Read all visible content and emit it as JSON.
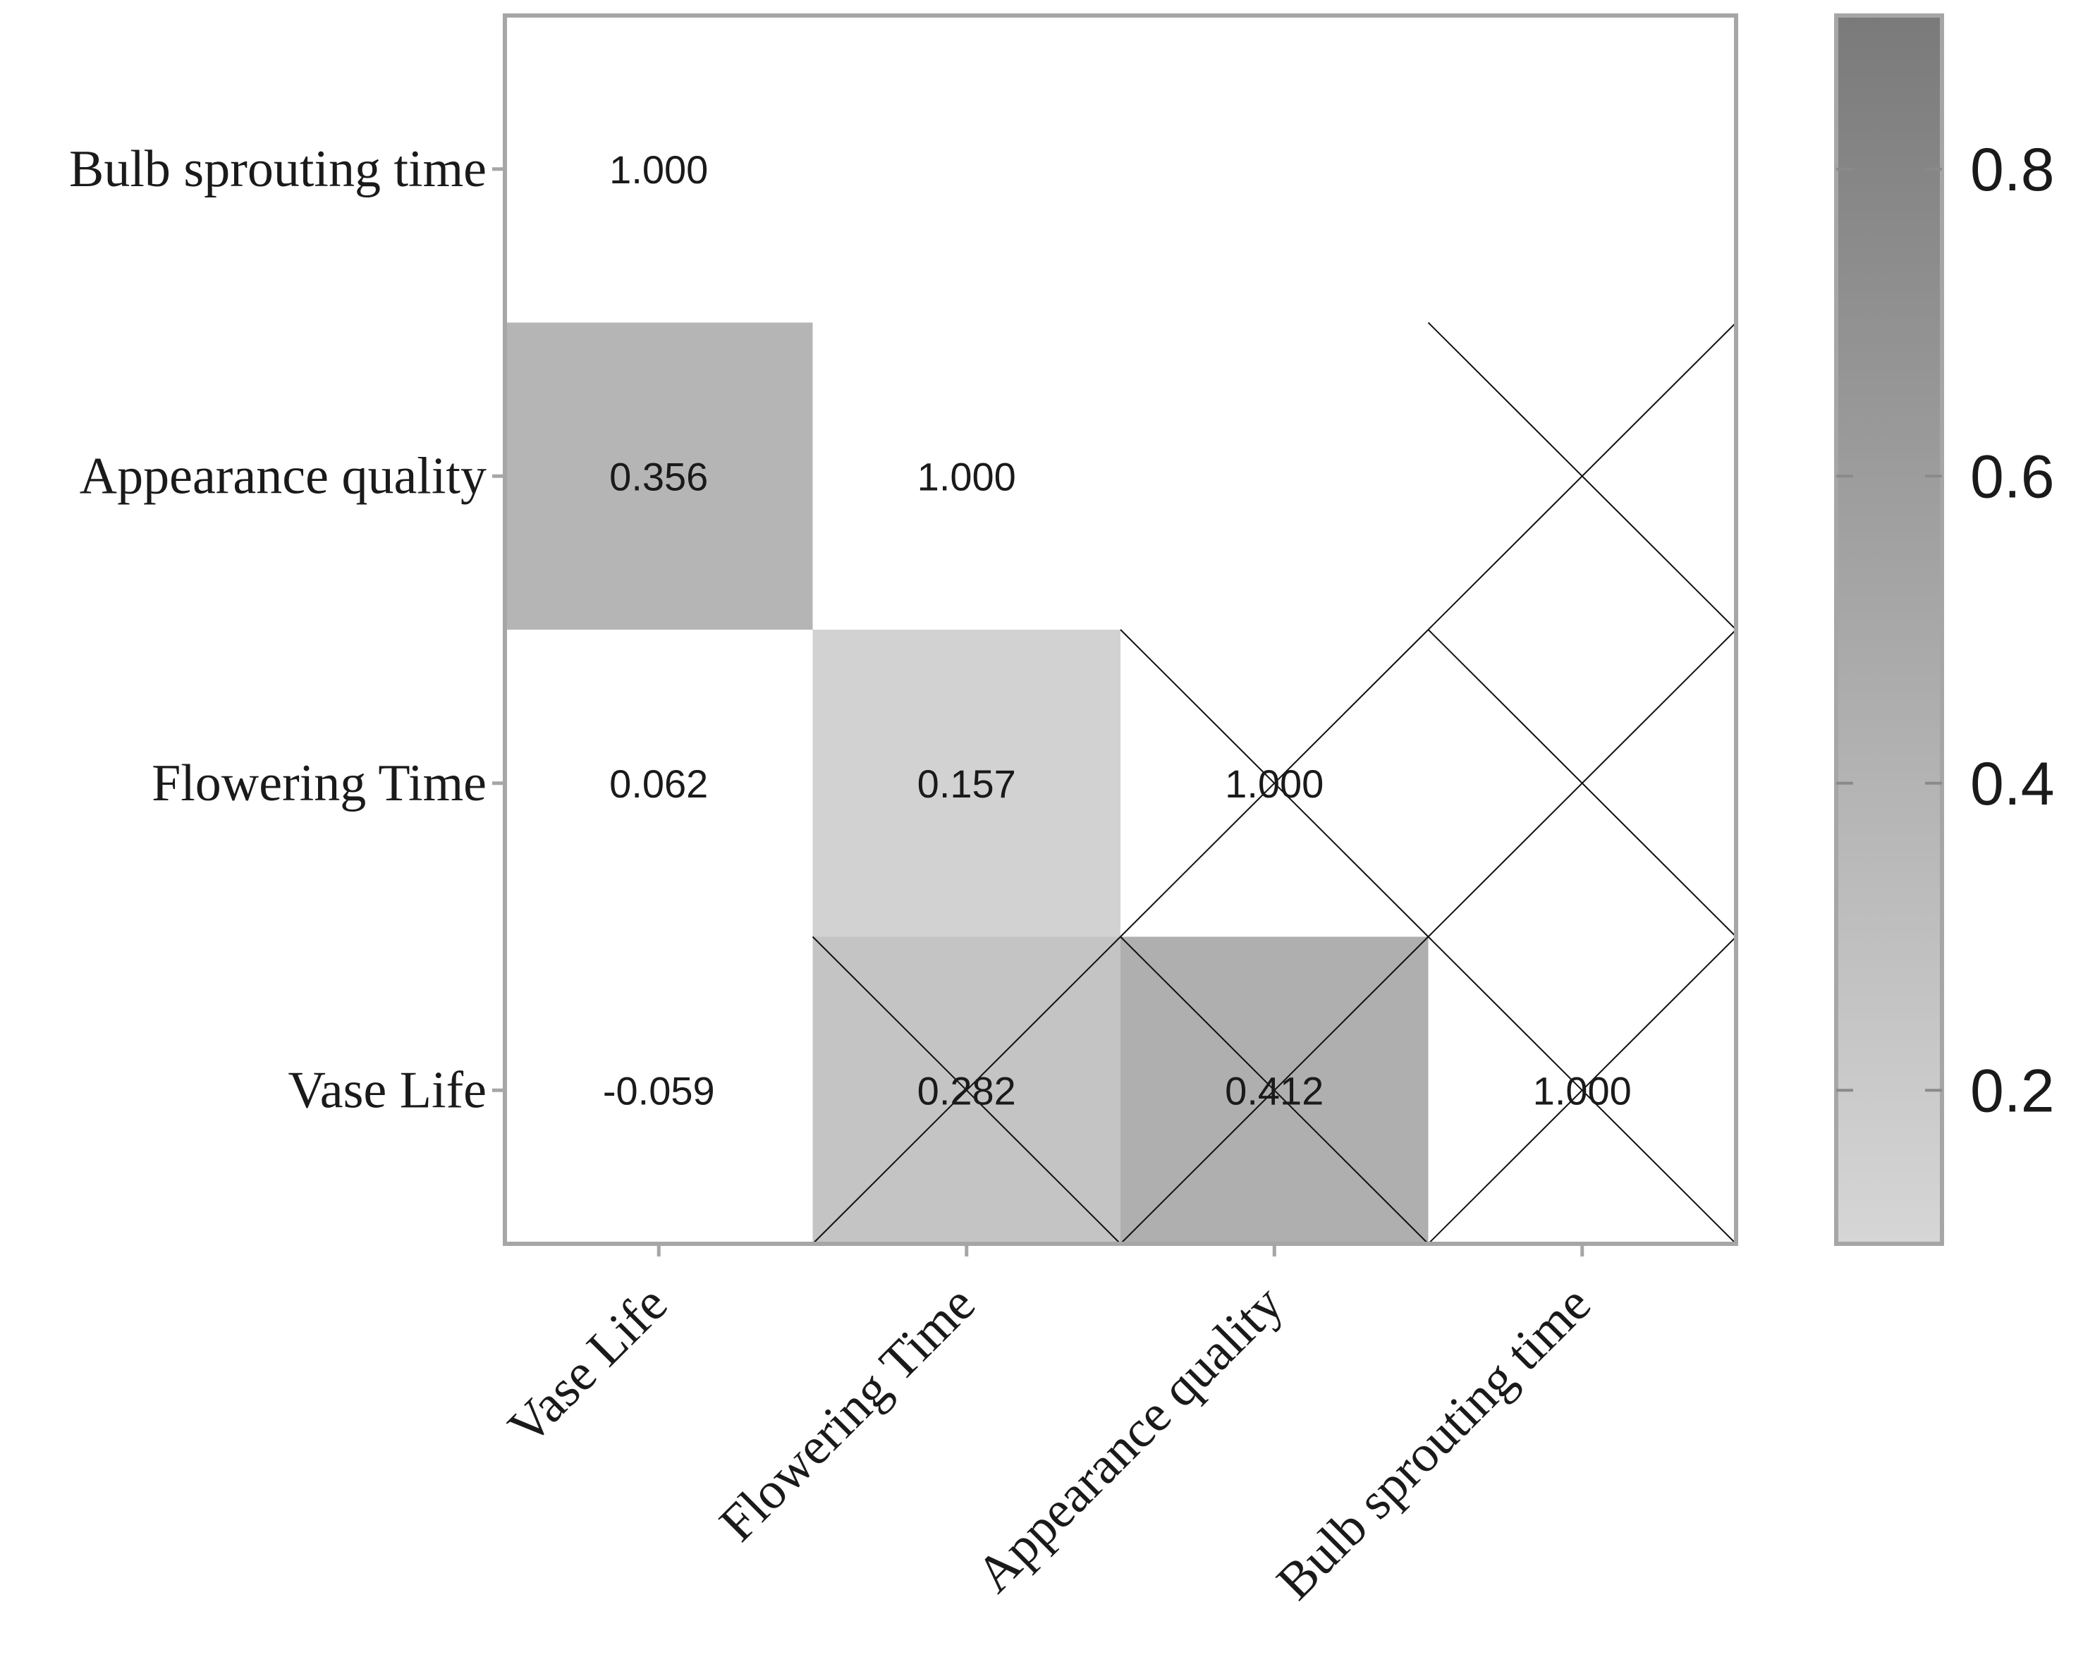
{
  "chart_data": {
    "type": "heatmap",
    "title": "",
    "xlabel": "",
    "ylabel": "",
    "x_categories": [
      "Vase Life",
      "Flowering Time",
      "Appearance quality",
      "Bulb sprouting time"
    ],
    "y_categories": [
      "Vase Life",
      "Flowering Time",
      "Appearance quality",
      "Bulb sprouting time"
    ],
    "cells": [
      {
        "x": "Vase Life",
        "y": "Vase Life",
        "value": -0.059,
        "label": "-0.059"
      },
      {
        "x": "Flowering Time",
        "y": "Vase Life",
        "value": 0.282,
        "label": "0.282"
      },
      {
        "x": "Appearance quality",
        "y": "Vase Life",
        "value": 0.412,
        "label": "0.412"
      },
      {
        "x": "Bulb sprouting time",
        "y": "Vase Life",
        "value": 1.0,
        "label": "1.000"
      },
      {
        "x": "Vase Life",
        "y": "Flowering Time",
        "value": 0.062,
        "label": "0.062"
      },
      {
        "x": "Flowering Time",
        "y": "Flowering Time",
        "value": 0.157,
        "label": "0.157"
      },
      {
        "x": "Appearance quality",
        "y": "Flowering Time",
        "value": 1.0,
        "label": "1.000"
      },
      {
        "x": "Vase Life",
        "y": "Appearance quality",
        "value": 0.356,
        "label": "0.356"
      },
      {
        "x": "Flowering Time",
        "y": "Appearance quality",
        "value": 1.0,
        "label": "1.000"
      },
      {
        "x": "Vase Life",
        "y": "Bulb sprouting time",
        "value": 1.0,
        "label": "1.000"
      }
    ],
    "masked_cells": "upper triangle above the diagonal, drawn with crossed diagonal lines",
    "colorbar": {
      "range": [
        0.1,
        0.9
      ],
      "ticks": [
        0.2,
        0.4,
        0.6,
        0.8
      ],
      "tick_labels": [
        "0.2",
        "0.4",
        "0.6",
        "0.8"
      ],
      "color_low": "#d6d6d6",
      "color_high": "#7a7a7a"
    },
    "colors": {
      "cell_0.356": "#b5b5b5",
      "cell_0.157": "#d2d2d2",
      "cell_0.282": "#c4c4c4",
      "cell_0.412": "#afafaf",
      "cell_plain": "#ffffff",
      "frame": "#a6a6a6"
    },
    "grid": false,
    "legend": "right"
  }
}
